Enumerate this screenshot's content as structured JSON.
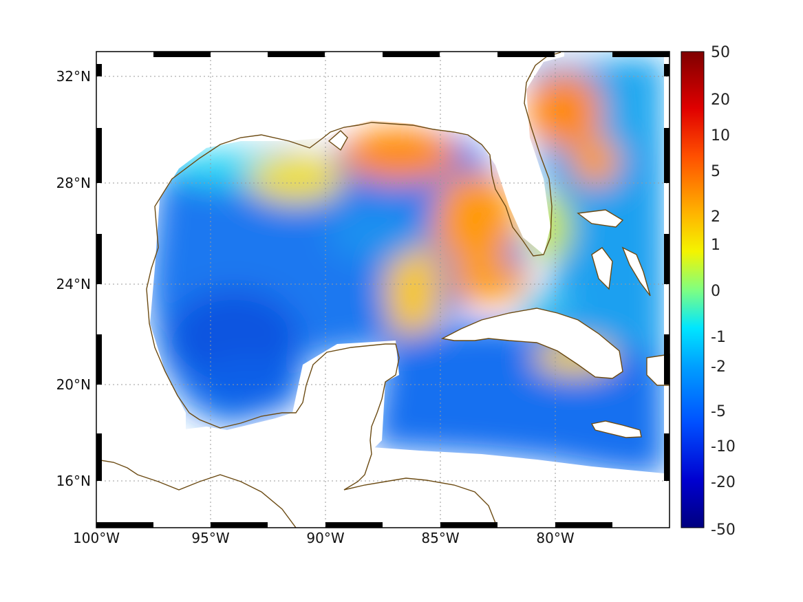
{
  "map": {
    "type": "gridded-field-map",
    "projection": "plate carree",
    "lon_range": [
      -100,
      -75
    ],
    "lat_range": [
      14,
      33
    ],
    "x_ticks": [
      {
        "lon": -100,
        "label": "100°W"
      },
      {
        "lon": -95,
        "label": "95°W"
      },
      {
        "lon": -90,
        "label": "90°W"
      },
      {
        "lon": -85,
        "label": "85°W"
      },
      {
        "lon": -80,
        "label": "80°W"
      }
    ],
    "y_ticks": [
      {
        "lat": 32,
        "label": "32°N"
      },
      {
        "lat": 28,
        "label": "28°N"
      },
      {
        "lat": 24,
        "label": "24°N"
      },
      {
        "lat": 20,
        "label": "20°N"
      },
      {
        "lat": 16,
        "label": "16°N"
      }
    ],
    "grid": true,
    "coastline_color": "#6b4a12",
    "colormap": "jet",
    "colorbar": {
      "range": [
        -50,
        50
      ],
      "scale": "symmetric-log",
      "ticks": [
        "50",
        "20",
        "10",
        "5",
        "2",
        "1",
        "0",
        "-1",
        "-2",
        "-5",
        "-10",
        "-20",
        "-50"
      ]
    }
  },
  "chart_data": {
    "type": "heatmap",
    "description_units": "gridded field values on symmetric-log colour scale",
    "xlabel": "",
    "ylabel": "",
    "xlim": [
      -100,
      -75
    ],
    "ylim": [
      14,
      33
    ],
    "grid": true,
    "colorbar_ticks": [
      50,
      20,
      10,
      5,
      2,
      1,
      0,
      -1,
      -2,
      -5,
      -10,
      -20,
      -50
    ],
    "regions": [
      {
        "area": "western Gulf of Mexico",
        "value": -5
      },
      {
        "area": "central Bay of Campeche",
        "value": -6
      },
      {
        "area": "Texas-Louisiana shelf",
        "value": -2
      },
      {
        "area": "northeastern Gulf (off Mississippi/Alabama)",
        "value": 5
      },
      {
        "area": "west Florida shelf",
        "value": 4
      },
      {
        "area": "Florida Straits",
        "value": 3
      },
      {
        "area": "off Georgia/South Carolina",
        "value": 5
      },
      {
        "area": "western Atlantic off Florida",
        "value": -3
      },
      {
        "area": "Yucatan Channel / NW Caribbean",
        "value": -4
      },
      {
        "area": "south of Cuba",
        "value": 2
      },
      {
        "area": "Cayman / central Caribbean",
        "value": -6
      }
    ]
  }
}
